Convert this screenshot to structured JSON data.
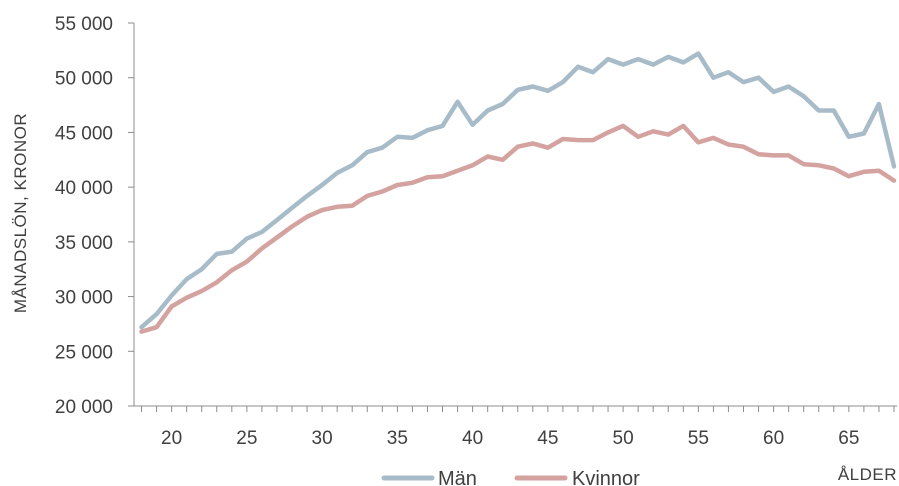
{
  "chart_data": {
    "type": "line",
    "xlabel": "ÅLDER",
    "ylabel": "MÅNADSLÖN, KRONOR",
    "xlim": [
      17.5,
      68.2
    ],
    "ylim": [
      20000,
      55000
    ],
    "x_ticks": [
      20,
      25,
      30,
      35,
      40,
      45,
      50,
      55,
      60,
      65
    ],
    "x_tick_labels": [
      "20",
      "25",
      "30",
      "35",
      "40",
      "45",
      "50",
      "55",
      "60",
      "65"
    ],
    "y_ticks": [
      20000,
      25000,
      30000,
      35000,
      40000,
      45000,
      50000,
      55000
    ],
    "y_tick_labels": [
      "20 000",
      "25 000",
      "30 000",
      "35 000",
      "40 000",
      "45 000",
      "50 000",
      "55 000"
    ],
    "grid": false,
    "legend_position": "bottom-center",
    "x": [
      18,
      19,
      20,
      21,
      22,
      23,
      24,
      25,
      26,
      27,
      28,
      29,
      30,
      31,
      32,
      33,
      34,
      35,
      36,
      37,
      38,
      39,
      40,
      41,
      42,
      43,
      44,
      45,
      46,
      47,
      48,
      49,
      50,
      51,
      52,
      53,
      54,
      55,
      56,
      57,
      58,
      59,
      60,
      61,
      62,
      63,
      64,
      65,
      66,
      67,
      68
    ],
    "series": [
      {
        "name": "Män",
        "color": "#a7bcc8",
        "values": [
          27200,
          28400,
          30100,
          31600,
          32500,
          33900,
          34100,
          35300,
          35900,
          37000,
          38100,
          39200,
          40200,
          41300,
          42000,
          43200,
          43600,
          44600,
          44500,
          45200,
          45600,
          47800,
          45700,
          47000,
          47600,
          48900,
          49200,
          48800,
          49600,
          51000,
          50500,
          51700,
          51200,
          51700,
          51200,
          51900,
          51400,
          52200,
          50000,
          50500,
          49600,
          50000,
          48700,
          49200,
          48300,
          47000,
          47000,
          44600,
          44900,
          47600,
          41900
        ]
      },
      {
        "name": "Kvinnor",
        "color": "#d4a29f",
        "values": [
          26800,
          27200,
          29100,
          29900,
          30500,
          31300,
          32400,
          33200,
          34400,
          35400,
          36400,
          37300,
          37900,
          38200,
          38300,
          39200,
          39600,
          40200,
          40400,
          40900,
          41000,
          41500,
          42000,
          42800,
          42500,
          43700,
          44000,
          43600,
          44400,
          44300,
          44300,
          45000,
          45600,
          44600,
          45100,
          44800,
          45600,
          44100,
          44500,
          43900,
          43700,
          43000,
          42900,
          42900,
          42100,
          42000,
          41700,
          41000,
          41400,
          41500,
          40600
        ]
      }
    ]
  }
}
